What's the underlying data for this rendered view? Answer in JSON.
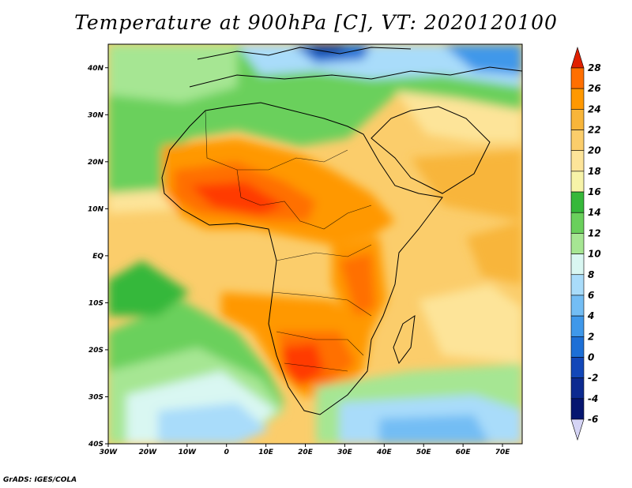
{
  "title": "Temperature at 900hPa [C], VT: 2020120100",
  "credit": "GrADS: IGES/COLA",
  "map": {
    "lat_labels": [
      "40N",
      "30N",
      "20N",
      "10N",
      "EQ",
      "10S",
      "20S",
      "30S",
      "40S"
    ],
    "lon_labels": [
      "30W",
      "20W",
      "10W",
      "0",
      "10E",
      "20E",
      "30E",
      "40E",
      "50E",
      "60E",
      "70E"
    ],
    "lat_range": [
      -40,
      45
    ],
    "lon_range": [
      -30,
      75
    ]
  },
  "colorbar": {
    "levels": [
      "28",
      "26",
      "24",
      "22",
      "20",
      "18",
      "16",
      "14",
      "12",
      "10",
      "8",
      "6",
      "4",
      "2",
      "0",
      "-2",
      "-4",
      "-6"
    ],
    "colors": [
      "#ff3a00",
      "#ff6f00",
      "#ff9800",
      "#f8b53a",
      "#fbcd6b",
      "#fde499",
      "#f7f3a8",
      "#36b83a",
      "#6ad05c",
      "#a6e693",
      "#d9f7f2",
      "#a9dcfa",
      "#73bdf4",
      "#3f98ea",
      "#1d6fd6",
      "#1247b8",
      "#0c2a90",
      "#061670",
      "#d5d4f5"
    ]
  }
}
